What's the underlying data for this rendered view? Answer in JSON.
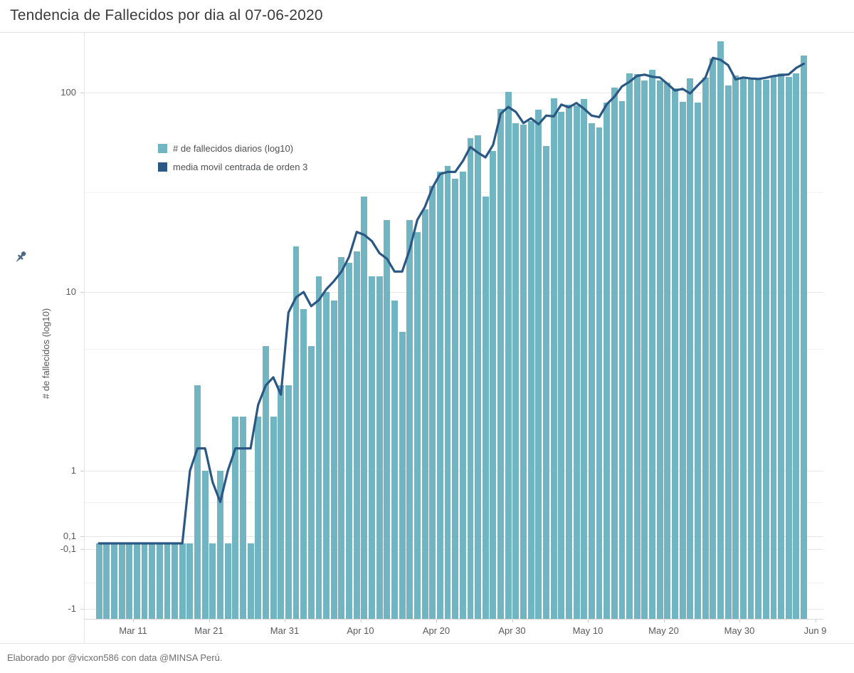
{
  "title": "Tendencia de Fallecidos por dia al 07-06-2020",
  "footer": "Elaborado por @vicxon586 con data @MINSA Perú.",
  "legend": {
    "bars_label": "# de fallecidos diarios (log10)",
    "line_label": "media movil centrada de orden 3"
  },
  "y_axis_title": "# de fallecidos (log10)",
  "icons": {
    "pin": "pin-icon"
  },
  "colors": {
    "bar": "#72b5c2",
    "line": "#2a5783",
    "title_text": "#3a3a3a",
    "axis_text": "#58595b",
    "grid": "#e8e8e8"
  },
  "chart_data": {
    "type": "bar",
    "title": "Tendencia de Fallecidos por dia al 07-06-2020",
    "ylabel": "# de fallecidos (log10)",
    "xlabel": "",
    "yscale": "symlog",
    "legend_position": "inside-top-left",
    "grid": "horizontal",
    "y_ticks": [
      "100",
      "10",
      "1",
      "0,1",
      "-0,1",
      "-1"
    ],
    "x_ticks": [
      "Mar 11",
      "Mar 21",
      "Mar 31",
      "Apr 10",
      "Apr 20",
      "Apr 30",
      "May 10",
      "May 20",
      "May 30",
      "Jun 9"
    ],
    "x": [
      "Mar 6",
      "Mar 7",
      "Mar 8",
      "Mar 9",
      "Mar 10",
      "Mar 11",
      "Mar 12",
      "Mar 13",
      "Mar 14",
      "Mar 15",
      "Mar 16",
      "Mar 17",
      "Mar 18",
      "Mar 19",
      "Mar 20",
      "Mar 21",
      "Mar 22",
      "Mar 23",
      "Mar 24",
      "Mar 25",
      "Mar 26",
      "Mar 27",
      "Mar 28",
      "Mar 29",
      "Mar 30",
      "Mar 31",
      "Apr 1",
      "Apr 2",
      "Apr 3",
      "Apr 4",
      "Apr 5",
      "Apr 6",
      "Apr 7",
      "Apr 8",
      "Apr 9",
      "Apr 10",
      "Apr 11",
      "Apr 12",
      "Apr 13",
      "Apr 14",
      "Apr 15",
      "Apr 16",
      "Apr 17",
      "Apr 18",
      "Apr 19",
      "Apr 20",
      "Apr 21",
      "Apr 22",
      "Apr 23",
      "Apr 24",
      "Apr 25",
      "Apr 26",
      "Apr 27",
      "Apr 28",
      "Apr 29",
      "Apr 30",
      "May 1",
      "May 2",
      "May 3",
      "May 4",
      "May 5",
      "May 6",
      "May 7",
      "May 8",
      "May 9",
      "May 10",
      "May 11",
      "May 12",
      "May 13",
      "May 14",
      "May 15",
      "May 16",
      "May 17",
      "May 18",
      "May 19",
      "May 20",
      "May 21",
      "May 22",
      "May 23",
      "May 24",
      "May 25",
      "May 26",
      "May 27",
      "May 28",
      "May 29",
      "May 30",
      "May 31",
      "Jun 1",
      "Jun 2",
      "Jun 3",
      "Jun 4",
      "Jun 5",
      "Jun 6",
      "Jun 7"
    ],
    "series": [
      {
        "name": "# de fallecidos diarios (log10)",
        "type": "bar",
        "color": "#72b5c2",
        "values": [
          0,
          0,
          0,
          0,
          0,
          0,
          0,
          0,
          0,
          0,
          0,
          0,
          0,
          3,
          1,
          0,
          1,
          0,
          2,
          2,
          0,
          2,
          5,
          2,
          3,
          3,
          17,
          8,
          5,
          12,
          10,
          9,
          15,
          14,
          16,
          30,
          12,
          12,
          23,
          9,
          6,
          23,
          20,
          26,
          34,
          40,
          43,
          37,
          40,
          59,
          61,
          30,
          51,
          83,
          101,
          70,
          69,
          72,
          82,
          54,
          94,
          80,
          87,
          86,
          93,
          70,
          67,
          89,
          106,
          91,
          125,
          124,
          115,
          130,
          115,
          112,
          105,
          90,
          118,
          89,
          119,
          148,
          181,
          109,
          122,
          118,
          117,
          118,
          116,
          122,
          125,
          120,
          125,
          154
        ]
      },
      {
        "name": "media movil centrada de orden 3",
        "type": "line",
        "color": "#2a5783",
        "derived_from": "centered moving average (order 3) of the bar series"
      }
    ]
  }
}
